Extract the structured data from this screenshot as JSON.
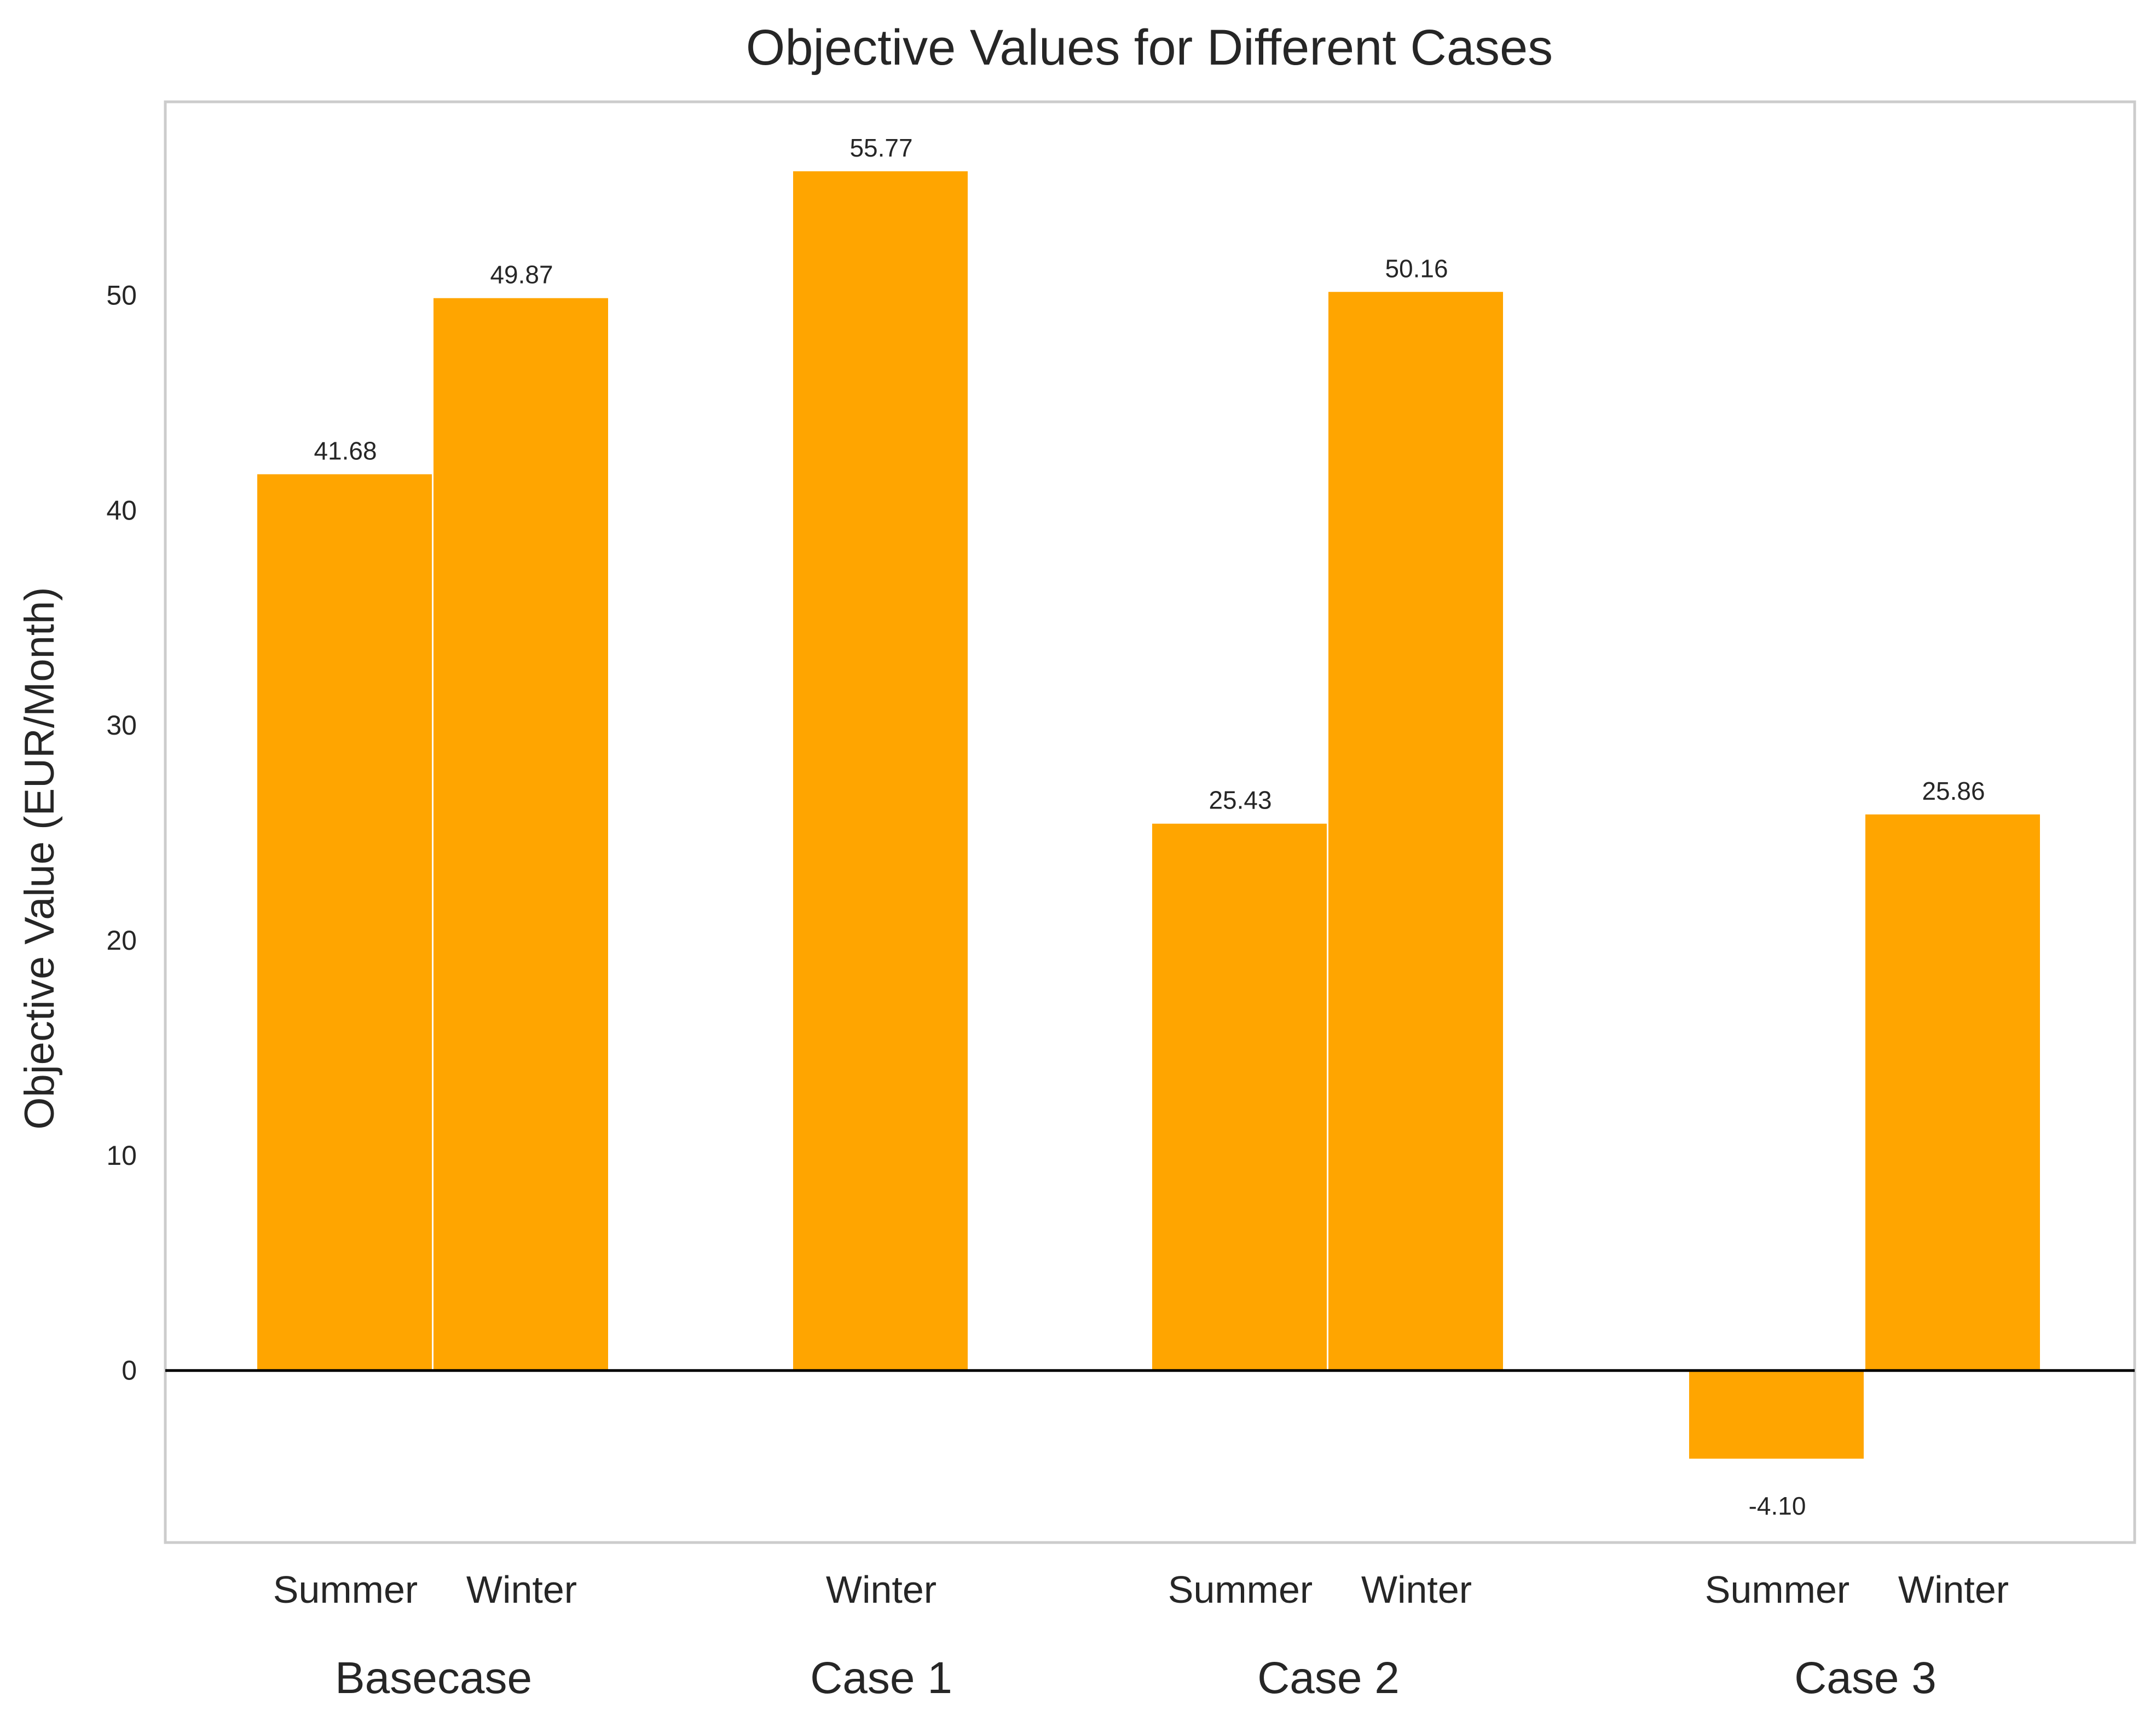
{
  "chart_data": {
    "type": "bar",
    "title": "Objective Values for Different Cases",
    "xlabel": "",
    "ylabel": "Objective Value (EUR/Month)",
    "ylim": [
      -8,
      59
    ],
    "yticks": [
      0,
      10,
      20,
      30,
      40,
      50
    ],
    "grid": false,
    "legend": "none",
    "bar_color": "#FFA500",
    "zero_line_color": "#000000",
    "frame_color": "#CCCCCC",
    "groups": [
      {
        "label": "Basecase",
        "bars": [
          {
            "category": "Summer",
            "value": 41.68,
            "label": "41.68"
          },
          {
            "category": "Winter",
            "value": 49.87,
            "label": "49.87"
          }
        ]
      },
      {
        "label": "Case 1",
        "bars": [
          {
            "category": "Winter",
            "value": 55.77,
            "label": "55.77"
          }
        ]
      },
      {
        "label": "Case 2",
        "bars": [
          {
            "category": "Summer",
            "value": 25.43,
            "label": "25.43"
          },
          {
            "category": "Winter",
            "value": 50.16,
            "label": "50.16"
          }
        ]
      },
      {
        "label": "Case 3",
        "bars": [
          {
            "category": "Summer",
            "value": -4.1,
            "label": "-4.10"
          },
          {
            "category": "Winter",
            "value": 25.86,
            "label": "25.86"
          }
        ]
      }
    ]
  }
}
